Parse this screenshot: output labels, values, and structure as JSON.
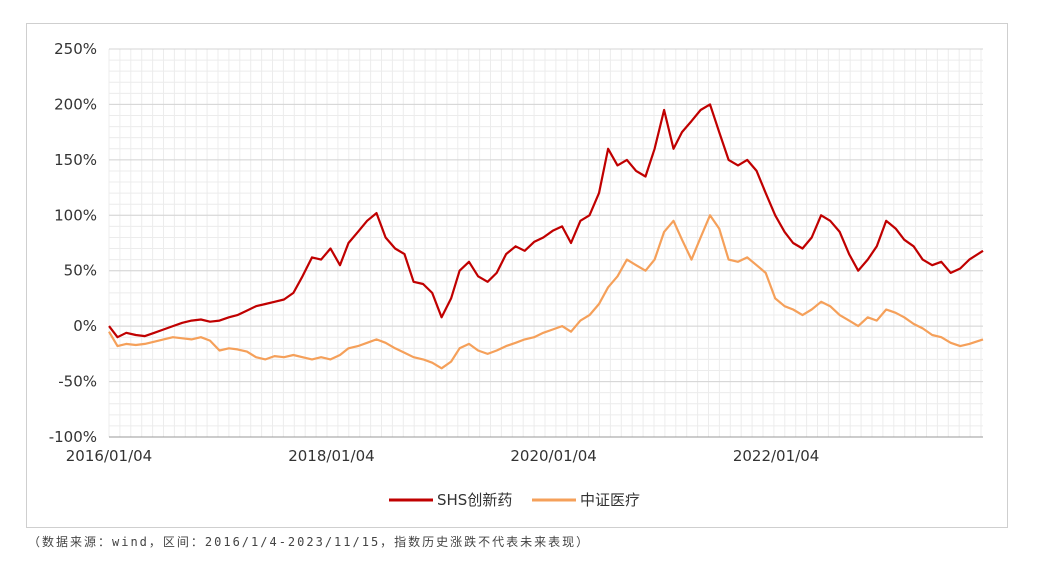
{
  "chart_data": {
    "type": "line",
    "title": "",
    "xlabel": "",
    "ylabel": "",
    "x_range": [
      "2016-01-04",
      "2023-11-15"
    ],
    "x_ticks": [
      "2016/01/04",
      "2018/01/04",
      "2020/01/04",
      "2022/01/04"
    ],
    "y_ticks": [
      "250%",
      "200%",
      "150%",
      "100%",
      "50%",
      "0%",
      "-50%",
      "-100%"
    ],
    "ylim": [
      -100,
      250
    ],
    "y_unit": "%",
    "grid": true,
    "legend_position": "bottom",
    "series": [
      {
        "name": "SHS创新药",
        "color": "#c00000",
        "points": [
          [
            "2016-01-04",
            0
          ],
          [
            "2016-02-01",
            -10
          ],
          [
            "2016-03-01",
            -6
          ],
          [
            "2016-04-01",
            -8
          ],
          [
            "2016-05-01",
            -9
          ],
          [
            "2016-06-01",
            -6
          ],
          [
            "2016-07-01",
            -3
          ],
          [
            "2016-08-01",
            0
          ],
          [
            "2016-09-01",
            3
          ],
          [
            "2016-10-01",
            5
          ],
          [
            "2016-11-01",
            6
          ],
          [
            "2016-12-01",
            4
          ],
          [
            "2017-01-01",
            5
          ],
          [
            "2017-02-01",
            8
          ],
          [
            "2017-03-01",
            10
          ],
          [
            "2017-04-01",
            14
          ],
          [
            "2017-05-01",
            18
          ],
          [
            "2017-06-01",
            20
          ],
          [
            "2017-07-01",
            22
          ],
          [
            "2017-08-01",
            24
          ],
          [
            "2017-09-01",
            30
          ],
          [
            "2017-10-01",
            45
          ],
          [
            "2017-11-01",
            62
          ],
          [
            "2017-12-01",
            60
          ],
          [
            "2018-01-01",
            70
          ],
          [
            "2018-02-01",
            55
          ],
          [
            "2018-03-01",
            75
          ],
          [
            "2018-04-01",
            85
          ],
          [
            "2018-05-01",
            95
          ],
          [
            "2018-06-01",
            102
          ],
          [
            "2018-07-01",
            80
          ],
          [
            "2018-08-01",
            70
          ],
          [
            "2018-09-01",
            65
          ],
          [
            "2018-10-01",
            40
          ],
          [
            "2018-11-01",
            38
          ],
          [
            "2018-12-01",
            30
          ],
          [
            "2019-01-01",
            8
          ],
          [
            "2019-02-01",
            25
          ],
          [
            "2019-03-01",
            50
          ],
          [
            "2019-04-01",
            58
          ],
          [
            "2019-05-01",
            45
          ],
          [
            "2019-06-01",
            40
          ],
          [
            "2019-07-01",
            48
          ],
          [
            "2019-08-01",
            65
          ],
          [
            "2019-09-01",
            72
          ],
          [
            "2019-10-01",
            68
          ],
          [
            "2019-11-01",
            76
          ],
          [
            "2019-12-01",
            80
          ],
          [
            "2020-01-01",
            86
          ],
          [
            "2020-02-01",
            90
          ],
          [
            "2020-03-01",
            75
          ],
          [
            "2020-04-01",
            95
          ],
          [
            "2020-05-01",
            100
          ],
          [
            "2020-06-01",
            120
          ],
          [
            "2020-07-01",
            160
          ],
          [
            "2020-08-01",
            145
          ],
          [
            "2020-09-01",
            150
          ],
          [
            "2020-10-01",
            140
          ],
          [
            "2020-11-01",
            135
          ],
          [
            "2020-12-01",
            160
          ],
          [
            "2021-01-01",
            195
          ],
          [
            "2021-02-01",
            160
          ],
          [
            "2021-03-01",
            175
          ],
          [
            "2021-04-01",
            185
          ],
          [
            "2021-05-01",
            195
          ],
          [
            "2021-06-01",
            200
          ],
          [
            "2021-07-01",
            175
          ],
          [
            "2021-08-01",
            150
          ],
          [
            "2021-09-01",
            145
          ],
          [
            "2021-10-01",
            150
          ],
          [
            "2021-11-01",
            140
          ],
          [
            "2021-12-01",
            120
          ],
          [
            "2022-01-01",
            100
          ],
          [
            "2022-02-01",
            85
          ],
          [
            "2022-03-01",
            75
          ],
          [
            "2022-04-01",
            70
          ],
          [
            "2022-05-01",
            80
          ],
          [
            "2022-06-01",
            100
          ],
          [
            "2022-07-01",
            95
          ],
          [
            "2022-08-01",
            85
          ],
          [
            "2022-09-01",
            65
          ],
          [
            "2022-10-01",
            50
          ],
          [
            "2022-11-01",
            60
          ],
          [
            "2022-12-01",
            72
          ],
          [
            "2023-01-01",
            95
          ],
          [
            "2023-02-01",
            88
          ],
          [
            "2023-03-01",
            78
          ],
          [
            "2023-04-01",
            72
          ],
          [
            "2023-05-01",
            60
          ],
          [
            "2023-06-01",
            55
          ],
          [
            "2023-07-01",
            58
          ],
          [
            "2023-08-01",
            48
          ],
          [
            "2023-09-01",
            52
          ],
          [
            "2023-10-01",
            60
          ],
          [
            "2023-11-15",
            68
          ]
        ]
      },
      {
        "name": "中证医疗",
        "color": "#f5a05a",
        "points": [
          [
            "2016-01-04",
            -5
          ],
          [
            "2016-02-01",
            -18
          ],
          [
            "2016-03-01",
            -16
          ],
          [
            "2016-04-01",
            -17
          ],
          [
            "2016-05-01",
            -16
          ],
          [
            "2016-06-01",
            -14
          ],
          [
            "2016-07-01",
            -12
          ],
          [
            "2016-08-01",
            -10
          ],
          [
            "2016-09-01",
            -11
          ],
          [
            "2016-10-01",
            -12
          ],
          [
            "2016-11-01",
            -10
          ],
          [
            "2016-12-01",
            -13
          ],
          [
            "2017-01-01",
            -22
          ],
          [
            "2017-02-01",
            -20
          ],
          [
            "2017-03-01",
            -21
          ],
          [
            "2017-04-01",
            -23
          ],
          [
            "2017-05-01",
            -28
          ],
          [
            "2017-06-01",
            -30
          ],
          [
            "2017-07-01",
            -27
          ],
          [
            "2017-08-01",
            -28
          ],
          [
            "2017-09-01",
            -26
          ],
          [
            "2017-10-01",
            -28
          ],
          [
            "2017-11-01",
            -30
          ],
          [
            "2017-12-01",
            -28
          ],
          [
            "2018-01-01",
            -30
          ],
          [
            "2018-02-01",
            -26
          ],
          [
            "2018-03-01",
            -20
          ],
          [
            "2018-04-01",
            -18
          ],
          [
            "2018-05-01",
            -15
          ],
          [
            "2018-06-01",
            -12
          ],
          [
            "2018-07-01",
            -15
          ],
          [
            "2018-08-01",
            -20
          ],
          [
            "2018-09-01",
            -24
          ],
          [
            "2018-10-01",
            -28
          ],
          [
            "2018-11-01",
            -30
          ],
          [
            "2018-12-01",
            -33
          ],
          [
            "2019-01-01",
            -38
          ],
          [
            "2019-02-01",
            -32
          ],
          [
            "2019-03-01",
            -20
          ],
          [
            "2019-04-01",
            -16
          ],
          [
            "2019-05-01",
            -22
          ],
          [
            "2019-06-01",
            -25
          ],
          [
            "2019-07-01",
            -22
          ],
          [
            "2019-08-01",
            -18
          ],
          [
            "2019-09-01",
            -15
          ],
          [
            "2019-10-01",
            -12
          ],
          [
            "2019-11-01",
            -10
          ],
          [
            "2019-12-01",
            -6
          ],
          [
            "2020-01-01",
            -3
          ],
          [
            "2020-02-01",
            0
          ],
          [
            "2020-03-01",
            -5
          ],
          [
            "2020-04-01",
            5
          ],
          [
            "2020-05-01",
            10
          ],
          [
            "2020-06-01",
            20
          ],
          [
            "2020-07-01",
            35
          ],
          [
            "2020-08-01",
            45
          ],
          [
            "2020-09-01",
            60
          ],
          [
            "2020-10-01",
            55
          ],
          [
            "2020-11-01",
            50
          ],
          [
            "2020-12-01",
            60
          ],
          [
            "2021-01-01",
            85
          ],
          [
            "2021-02-01",
            95
          ],
          [
            "2021-03-01",
            78
          ],
          [
            "2021-04-01",
            60
          ],
          [
            "2021-05-01",
            80
          ],
          [
            "2021-06-01",
            100
          ],
          [
            "2021-07-01",
            88
          ],
          [
            "2021-08-01",
            60
          ],
          [
            "2021-09-01",
            58
          ],
          [
            "2021-10-01",
            62
          ],
          [
            "2021-11-01",
            55
          ],
          [
            "2021-12-01",
            48
          ],
          [
            "2022-01-01",
            25
          ],
          [
            "2022-02-01",
            18
          ],
          [
            "2022-03-01",
            15
          ],
          [
            "2022-04-01",
            10
          ],
          [
            "2022-05-01",
            15
          ],
          [
            "2022-06-01",
            22
          ],
          [
            "2022-07-01",
            18
          ],
          [
            "2022-08-01",
            10
          ],
          [
            "2022-09-01",
            5
          ],
          [
            "2022-10-01",
            0
          ],
          [
            "2022-11-01",
            8
          ],
          [
            "2022-12-01",
            5
          ],
          [
            "2023-01-01",
            15
          ],
          [
            "2023-02-01",
            12
          ],
          [
            "2023-03-01",
            8
          ],
          [
            "2023-04-01",
            2
          ],
          [
            "2023-05-01",
            -2
          ],
          [
            "2023-06-01",
            -8
          ],
          [
            "2023-07-01",
            -10
          ],
          [
            "2023-08-01",
            -15
          ],
          [
            "2023-09-01",
            -18
          ],
          [
            "2023-10-01",
            -16
          ],
          [
            "2023-11-15",
            -12
          ]
        ]
      }
    ]
  },
  "footnote": "（数据来源：wind，区间：2016/1/4-2023/11/15，指数历史涨跌不代表未来表现）"
}
